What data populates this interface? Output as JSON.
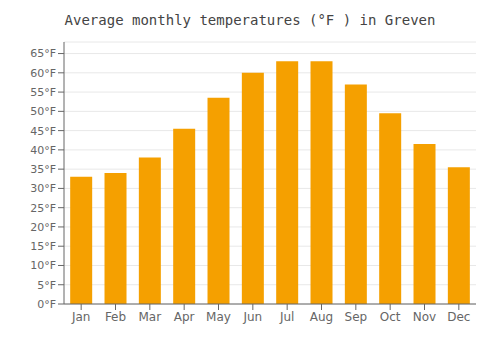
{
  "chart_data": {
    "type": "bar",
    "title": "Average monthly temperatures (°F ) in Greven",
    "categories": [
      "Jan",
      "Feb",
      "Mar",
      "Apr",
      "May",
      "Jun",
      "Jul",
      "Aug",
      "Sep",
      "Oct",
      "Nov",
      "Dec"
    ],
    "values": [
      33,
      34,
      38,
      45.5,
      53.5,
      60,
      63,
      63,
      57,
      49.5,
      41.5,
      35.5
    ],
    "color": "#F5A000",
    "ylim": [
      0,
      68
    ],
    "yticks": [
      {
        "value": 0,
        "label": "0°F"
      },
      {
        "value": 5,
        "label": "5°F"
      },
      {
        "value": 10,
        "label": "10°F"
      },
      {
        "value": 15,
        "label": "15°F"
      },
      {
        "value": 20,
        "label": "20°F"
      },
      {
        "value": 25,
        "label": "25°F"
      },
      {
        "value": 30,
        "label": "30°F"
      },
      {
        "value": 35,
        "label": "35°F"
      },
      {
        "value": 40,
        "label": "40°F"
      },
      {
        "value": 45,
        "label": "45°F"
      },
      {
        "value": 50,
        "label": "50°F"
      },
      {
        "value": 55,
        "label": "55°F"
      },
      {
        "value": 60,
        "label": "60°F"
      },
      {
        "value": 65,
        "label": "65°F"
      }
    ],
    "grid": true
  }
}
